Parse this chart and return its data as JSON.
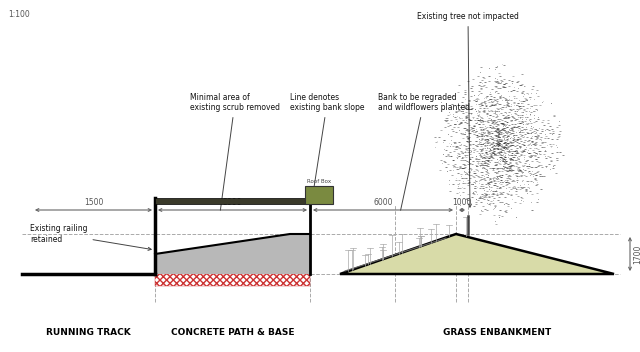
{
  "bg_color": "#ffffff",
  "stand_fill_color": "#b8b8b8",
  "embankment_fill_color": "#d8dba8",
  "hatching_color": "#cc3333",
  "dim_line_color": "#999999",
  "dashed_line_color": "#aaaaaa",
  "annotations": {
    "existing_tree": "Existing tree not impacted",
    "minimal_scrub": "Minimal area of\nexisting scrub removed",
    "line_denotes": "Line denotes\nexisting bank slope",
    "bank_regraded": "Bank to be regraded\nand wildflowers planted",
    "existing_railing": "Existing railing\nretained",
    "running_track": "RUNNING TRACK",
    "concrete_path": "CONCRETE PATH & BASE",
    "grass_embankment": "GRASS ENBANKMENT",
    "height_label": "1700",
    "roof_box_label": "Roof Box"
  },
  "scale_label": "1:100"
}
